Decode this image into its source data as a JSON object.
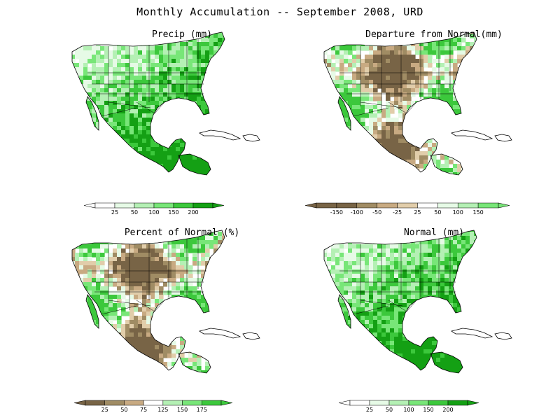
{
  "title": "Monthly Accumulation -- September 2008, URD",
  "colors": {
    "land": "#ffffff",
    "coast": "#000000",
    "green_very_light": "#e6fae6",
    "green_light": "#b4f0b4",
    "green_mid": "#78e678",
    "green_dark": "#3cc83c",
    "green_darkest": "#14a014",
    "brown_dark": "#786446",
    "brown_mid": "#a08c64",
    "brown_light": "#c8aa82",
    "brown_pale": "#e1cdaa"
  },
  "panels": [
    {
      "id": "precip",
      "title": "Precip (mm)",
      "scheme": "green",
      "colorbar_labels": [
        "25",
        "50",
        "100",
        "150",
        "200"
      ]
    },
    {
      "id": "departure",
      "title": "Departure from Normal(mm)",
      "scheme": "diverging",
      "colorbar_labels": [
        "-150",
        "-100",
        "-50",
        "-25",
        "25",
        "50",
        "100",
        "150"
      ]
    },
    {
      "id": "percent",
      "title": "Percent of Normal (%)",
      "scheme": "diverging",
      "colorbar_labels": [
        "25",
        "50",
        "75",
        "125",
        "150",
        "175"
      ]
    },
    {
      "id": "normal",
      "title": "Normal (mm)",
      "scheme": "green",
      "colorbar_labels": [
        "25",
        "50",
        "100",
        "150",
        "200"
      ]
    }
  ]
}
